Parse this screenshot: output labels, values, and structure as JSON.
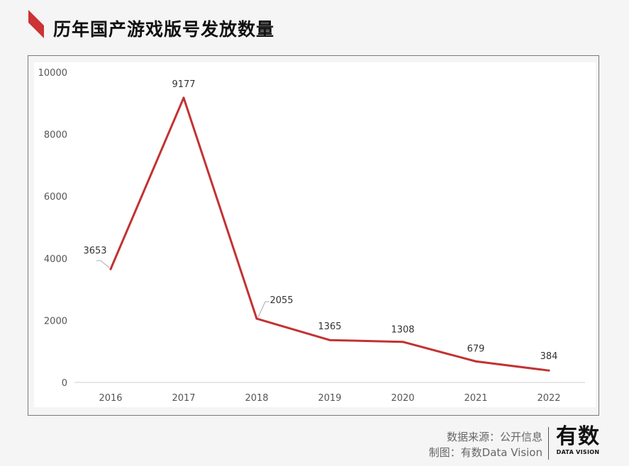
{
  "header": {
    "title": "历年国产游戏版号发放数量"
  },
  "colors": {
    "accent": "#cc3333",
    "line": "#c33232",
    "axis": "#cfcfcf",
    "text": "#555555"
  },
  "chart_data": {
    "type": "line",
    "title": "历年国产游戏版号发放数量",
    "categories": [
      "2016",
      "2017",
      "2018",
      "2019",
      "2020",
      "2021",
      "2022"
    ],
    "series": [
      {
        "values": [
          3653,
          9177,
          2055,
          1365,
          1308,
          679,
          384
        ]
      }
    ],
    "data_labels": [
      "3653",
      "9177",
      "2055",
      "1365",
      "1308",
      "679",
      "384"
    ],
    "y_ticks": [
      "0",
      "2000",
      "4000",
      "6000",
      "8000",
      "10000"
    ],
    "ylim": [
      0,
      10000
    ],
    "grid": false,
    "legend": "none"
  },
  "footer": {
    "source": "数据来源：公开信息",
    "made_by": "制图：有数Data Vision"
  },
  "brand": {
    "main": "有数",
    "sub": "DATA VISION"
  }
}
